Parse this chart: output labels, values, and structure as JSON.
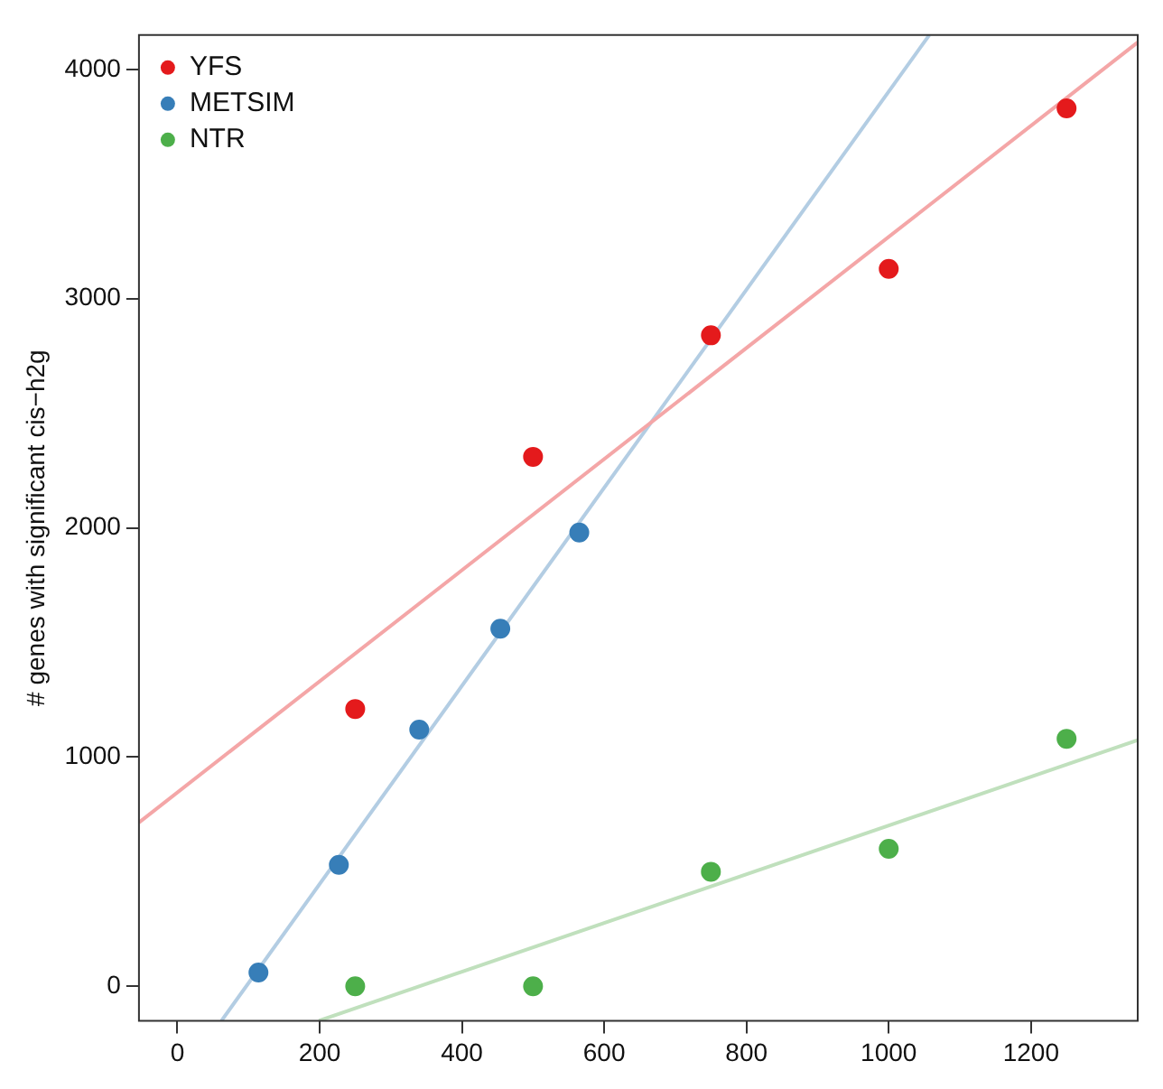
{
  "chart_data": {
    "type": "scatter",
    "ylabel": "# genes with significant cis−h2g",
    "xlim": [
      -54,
      1350
    ],
    "ylim": [
      -150,
      4150
    ],
    "xticks": [
      0,
      200,
      400,
      600,
      800,
      1000,
      1200
    ],
    "yticks": [
      0,
      1000,
      2000,
      3000,
      4000
    ],
    "grid": false,
    "legend": "top left",
    "marker": "circle",
    "series": [
      {
        "name": "YFS",
        "color": "#e41a1c",
        "x": [
          250,
          500,
          750,
          1000,
          1250
        ],
        "values": [
          1210,
          2310,
          2840,
          3130,
          3830
        ]
      },
      {
        "name": "METSIM",
        "color": "#377eb8",
        "x": [
          114,
          227,
          340,
          454,
          565
        ],
        "values": [
          60,
          530,
          1120,
          1560,
          1980
        ]
      },
      {
        "name": "NTR",
        "color": "#4daf4a",
        "x": [
          250,
          500,
          750,
          1000,
          1250
        ],
        "values": [
          0,
          0,
          500,
          600,
          1080
        ]
      },
      {
        "type": "line",
        "color": "#f4a6a7",
        "x": [
          -54,
          1350
        ],
        "values": [
          715,
          4118
        ],
        "marker": "none",
        "line_style": "solid"
      },
      {
        "type": "line",
        "color": "#b3cde3",
        "x": [
          62,
          1057
        ],
        "values": [
          -150,
          4150
        ],
        "marker": "none",
        "line_style": "solid"
      },
      {
        "type": "line",
        "color": "#c0e0bd",
        "x": [
          199,
          1350
        ],
        "values": [
          -150,
          1074
        ],
        "marker": "none",
        "line_style": "solid"
      }
    ]
  }
}
